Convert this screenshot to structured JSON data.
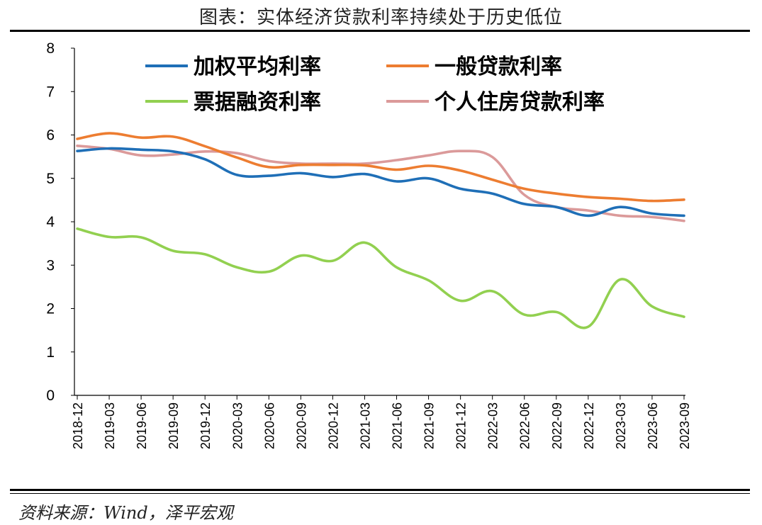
{
  "header": {
    "title": "图表：实体经济贷款利率持续处于历史低位"
  },
  "footer": {
    "source": "资料来源：Wind，泽平宏观"
  },
  "chart_data": {
    "type": "line",
    "title": "",
    "xlabel": "",
    "ylabel": "",
    "ylim": [
      0,
      8
    ],
    "yticks": [
      0,
      1,
      2,
      3,
      4,
      5,
      6,
      7,
      8
    ],
    "grid": false,
    "legend_position": "top",
    "categories": [
      "2018-12",
      "2019-03",
      "2019-06",
      "2019-09",
      "2019-12",
      "2020-03",
      "2020-06",
      "2020-09",
      "2020-12",
      "2021-03",
      "2021-06",
      "2021-09",
      "2021-12",
      "2022-03",
      "2022-06",
      "2022-09",
      "2022-12",
      "2023-03",
      "2023-06",
      "2023-09"
    ],
    "series": [
      {
        "name": "加权平均利率",
        "color": "#1F6FB7",
        "values": [
          5.63,
          5.69,
          5.66,
          5.62,
          5.44,
          5.08,
          5.06,
          5.12,
          5.03,
          5.1,
          4.93,
          5.0,
          4.76,
          4.65,
          4.41,
          4.34,
          4.14,
          4.34,
          4.19,
          4.14
        ]
      },
      {
        "name": "一般贷款利率",
        "color": "#ED7D31",
        "values": [
          5.91,
          6.04,
          5.94,
          5.96,
          5.74,
          5.48,
          5.26,
          5.31,
          5.31,
          5.3,
          5.2,
          5.29,
          5.18,
          4.97,
          4.76,
          4.65,
          4.57,
          4.53,
          4.48,
          4.51
        ]
      },
      {
        "name": "票据融资利率",
        "color": "#92D050",
        "values": [
          3.84,
          3.65,
          3.64,
          3.33,
          3.25,
          2.95,
          2.85,
          3.22,
          3.1,
          3.52,
          2.95,
          2.65,
          2.18,
          2.4,
          1.86,
          1.92,
          1.58,
          2.67,
          2.05,
          1.81
        ]
      },
      {
        "name": "个人住房贷款利率",
        "color": "#DB9A9A",
        "values": [
          5.75,
          5.68,
          5.53,
          5.55,
          5.62,
          5.58,
          5.4,
          5.34,
          5.34,
          5.34,
          5.42,
          5.53,
          5.63,
          5.49,
          4.62,
          4.34,
          4.26,
          4.14,
          4.11,
          4.02
        ]
      }
    ]
  }
}
